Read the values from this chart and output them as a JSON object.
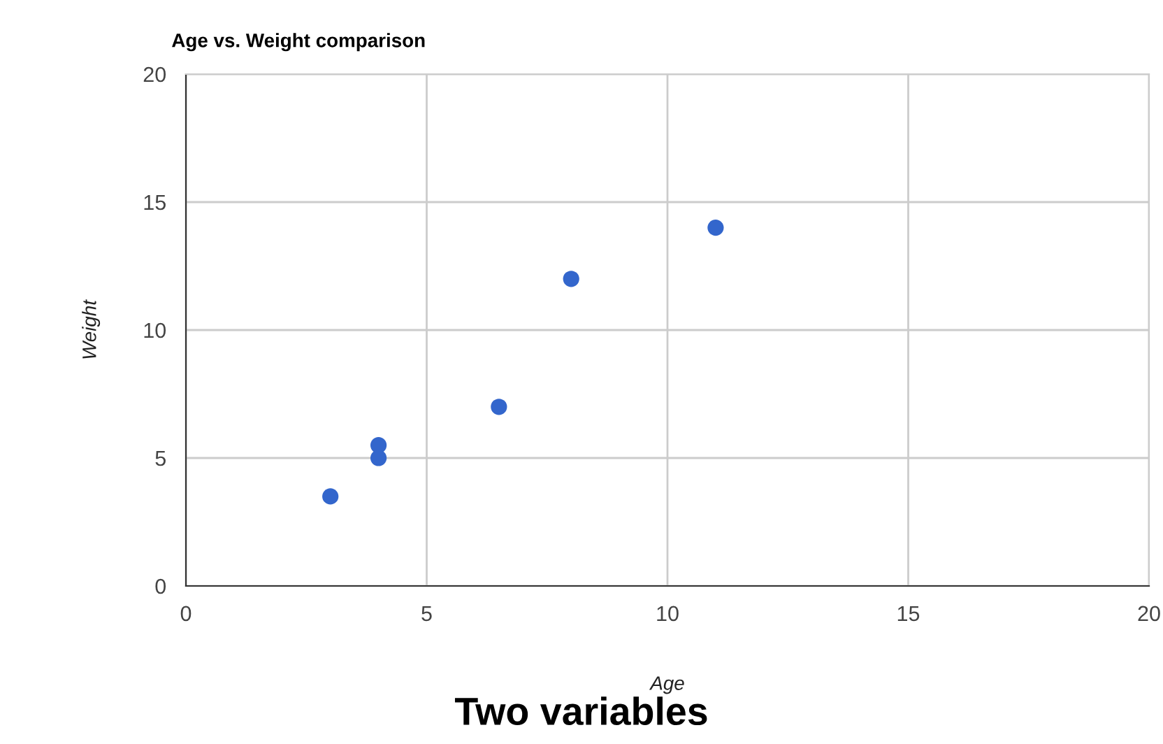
{
  "chart_data": {
    "type": "scatter",
    "title": "Age vs. Weight comparison",
    "xlabel": "Age",
    "ylabel": "Weight",
    "annotations": [
      "Two variables"
    ],
    "x": [
      3,
      4,
      4,
      6.5,
      8,
      11
    ],
    "series": [
      {
        "color": "#3366cc",
        "values": [
          3.5,
          5.5,
          5,
          7,
          12,
          14
        ]
      }
    ],
    "xlim": [
      0,
      20
    ],
    "xticks": [
      0,
      5,
      10,
      15,
      20
    ],
    "ylim": [
      0,
      20
    ],
    "yticks": [
      0,
      5,
      10,
      15,
      20
    ],
    "grid": true,
    "legend": false,
    "marker": "circle"
  }
}
